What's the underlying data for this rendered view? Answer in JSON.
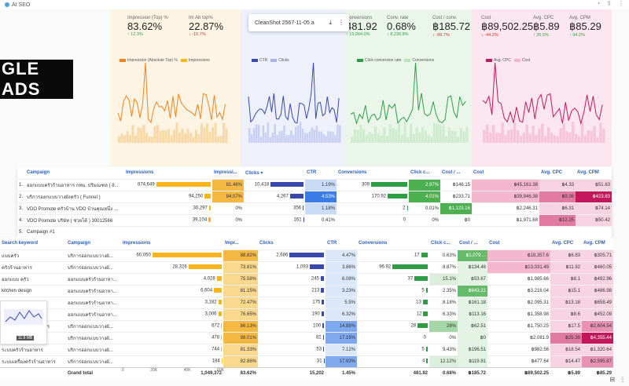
{
  "browser": {
    "tab_title": "AI SEO"
  },
  "banner": {
    "text": "GLE ADS"
  },
  "popup": {
    "title": "CleanShot 2567-11-05 a"
  },
  "kpis": {
    "p1": [
      {
        "label": "Impression (Top) %",
        "value": "83.62%",
        "delta": "↑ 12.3%",
        "dir": "up"
      },
      {
        "label": "Im Ab top%",
        "value": "22.87%",
        "delta": "↓ -15.7%",
        "dir": "down"
      }
    ],
    "p2": [
      {
        "label": "",
        "value": "15,202",
        "delta": "↓ -58.8%",
        "dir": "down"
      },
      {
        "label": "",
        "value": "1.45%",
        "delta": "↑ 43.3%",
        "dir": "up"
      }
    ],
    "p3": [
      {
        "label": "Conversions",
        "value": "481.92",
        "delta": "↑ 15,064.0%",
        "dir": "up"
      },
      {
        "label": "Conv. rate",
        "value": "0.68%",
        "delta": "↑ 8,236.8%",
        "dir": "up"
      },
      {
        "label": "Cost / conv.",
        "value": "฿185.72",
        "delta": "↓ -99.7%",
        "dir": "down"
      }
    ],
    "p4": [
      {
        "label": "Cost",
        "value": "฿89,502.25",
        "delta": "↓ -44.2%",
        "dir": "down"
      },
      {
        "label": "Avg. CPC",
        "value": "฿5.89",
        "delta": "↑ 35.5%",
        "dir": "up"
      },
      {
        "label": "Avg. CPM",
        "value": "฿85.29",
        "delta": "↑ 94.2%",
        "dir": "up"
      }
    ]
  },
  "legends": {
    "p1": [
      "Impression (Absolute Top) %",
      "Impressions"
    ],
    "p2": [
      "CTR",
      "Clicks"
    ],
    "p3": [
      "Click conversion rate",
      "Conversions"
    ],
    "p4": [
      "Avg. CPC",
      "Cost"
    ]
  },
  "colors": {
    "orange": "#f0821e",
    "blue": "#3949ab",
    "green": "#2e9e44",
    "magenta": "#c2185b",
    "amber": "#f9b51a"
  },
  "campaign_table": {
    "headers": [
      "Campaign",
      "Impressions",
      "Impressi...",
      "Clicks ▾",
      "CTR",
      "Conversions",
      "Click c...",
      "Cost / ...",
      "Cost",
      "Avg. CPC",
      "Avg. CPM"
    ],
    "rows": [
      {
        "n": "1.",
        "name": "ออกแบบครัวร้านอาหาร กทม. ปริมณฑล ( 8...",
        "impr": "874,649",
        "imprpct": 0.99,
        "imp_top": "81.46%",
        "clicks": "10,418",
        "clkpct": 0.95,
        "ctr": "1.19%",
        "conv": "309",
        "convpct": 0.92,
        "ccr": "2.97%",
        "cpc_conv": "฿146.15",
        "cost": "฿45,161.38",
        "avgcpc": "฿4.33",
        "avgcpm": "฿51.63"
      },
      {
        "n": "2.",
        "name": "บริการออกแบบวางผังครัว ( Funnel )",
        "impr": "94,250",
        "imprpct": 0.11,
        "imp_top": "84.07%",
        "clicks": "4,267",
        "clkpct": 0.39,
        "ctr": "4.53%",
        "conv": "170.92",
        "convpct": 0.5,
        "ccr": "4.01%",
        "cpc_conv": "฿233.71",
        "cost": "฿39,946.38",
        "avgcpc": "฿9.36",
        "avgcpm": "฿423.83"
      },
      {
        "n": "3.",
        "name": "VDO Promote ครัวบ้าน VDO บ้านคุณหนึ่ง ...",
        "impr": "30,297",
        "imprpct": 0.03,
        "imp_top": "0%",
        "clicks": "356",
        "clkpct": 0.02,
        "ctr": "1.18%",
        "conv": "2",
        "convpct": 0.01,
        "ccr": "0.01%",
        "cpc_conv": "฿1,123.16",
        "cost": "฿2,246.31",
        "avgcpc": "฿6.31",
        "avgcpm": "฿74.14"
      },
      {
        "n": "4.",
        "name": "VDO Promote บริษัท ( ช่วยได้ ) 30012566",
        "impr": "39,104",
        "imprpct": 0.04,
        "imp_top": "0%",
        "clicks": "161",
        "clkpct": 0.01,
        "ctr": "0.41%",
        "conv": "0",
        "convpct": 0,
        "ccr": "0%",
        "cpc_conv": "฿0",
        "cost": "฿1,971.68",
        "avgcpc": "฿12.25",
        "avgcpm": "฿50.42"
      },
      {
        "n": "5.",
        "name": "Campaign #1",
        "impr": "",
        "imprpct": 0,
        "imp_top": "",
        "clicks": "",
        "clkpct": 0,
        "ctr": "",
        "conv": "",
        "convpct": 0,
        "ccr": "",
        "cpc_conv": "",
        "cost": "",
        "avgcpc": "",
        "avgcpm": ""
      }
    ]
  },
  "keyword_table": {
    "headers": [
      "Search keyword",
      "Campaign",
      "Impressions",
      "Impr...",
      "Clicks",
      "CTR",
      "Conversions",
      "Click c...",
      "Cost / ...",
      "Cost",
      "Avg. CPC",
      "Avg. CPM"
    ],
    "rows": [
      {
        "kw": "แบบครัว",
        "camp": "บริการออกแบบวางผั...",
        "impr": "60,050",
        "ip": 0.98,
        "it": "88.82%",
        "clk": "2,686",
        "cp": 0.95,
        "ctr": "4.47%",
        "conv": "17",
        "vp": 0.15,
        "ccr": "0.63%",
        "cc": "฿1,079....",
        "cost": "฿18,357.6",
        "cpc": "฿6.83",
        "cpm": "฿305.71"
      },
      {
        "kw": "ครัวร้านอาหาร",
        "camp": "บริการออกแบบวางผั...",
        "impr": "28,326",
        "ip": 0.47,
        "it": "73.81%",
        "clk": "1,093",
        "cp": 0.39,
        "ctr": "3.86%",
        "conv": "96.92",
        "vp": 0.8,
        "ccr": "8.87%",
        "cc": "฿134.46",
        "cost": "฿13,031.49",
        "cpc": "฿11.92",
        "cpm": "฿460.05"
      },
      {
        "kw": "ออกแบบ ครัว",
        "camp": "ออกแบบครัวร้านอาหา...",
        "impr": "4,028",
        "ip": 0.07,
        "it": "75.58%",
        "clk": "245",
        "cp": 0.09,
        "ctr": "6.08%",
        "conv": "37",
        "vp": 0.3,
        "ccr": "15.1%",
        "cc": "฿53.67",
        "cost": "฿1,985.66",
        "cpc": "฿8.1",
        "cpm": "฿492.96"
      },
      {
        "kw": "kitchen design",
        "camp": "ออกแบบครัวร้านอาหา...",
        "impr": "6,604",
        "ip": 0.11,
        "it": "81.15%",
        "clk": "213",
        "cp": 0.08,
        "ctr": "3.23%",
        "conv": "5",
        "vp": 0.04,
        "ccr": "2.35%",
        "cc": "฿643.21",
        "cost": "฿3,216.04",
        "cpc": "฿15.1",
        "cpm": "฿486.98"
      },
      {
        "kw": "ครัว",
        "camp": "ออกแบบครัวร้านอาหา...",
        "impr": "3,182",
        "ip": 0.05,
        "it": "72.47%",
        "clk": "175",
        "cp": 0.06,
        "ctr": "5.5%",
        "conv": "13",
        "vp": 0.11,
        "ccr": "8.18%",
        "cc": "฿161.18",
        "cost": "฿2,095.31",
        "cpc": "฿13.18",
        "cpm": "฿658.49"
      },
      {
        "kw": "ครัวร้านอาหาร",
        "camp": "ออกแบบครัวร้านอาหา...",
        "impr": "3,006",
        "ip": 0.05,
        "it": "76.65%",
        "clk": "190",
        "cp": 0.07,
        "ctr": "6.32%",
        "conv": "12",
        "vp": 0.1,
        "ccr": "6.33%",
        "cc": "฿113.16",
        "cost": "฿1,358.98",
        "cpc": "฿8.6",
        "cpm": "฿452.09"
      },
      {
        "kw": "ออกแบบครัวร้านอาหาร",
        "camp": "บริการออกแบบวางผั...",
        "impr": "672",
        "ip": 0.01,
        "it": "86.13%",
        "clk": "100",
        "cp": 0.04,
        "ctr": "14.88%",
        "conv": "28",
        "vp": 0.23,
        "ccr": "28%",
        "cc": "฿62.51",
        "cost": "฿1,750.25",
        "cpc": "฿17.5",
        "cpm": "฿2,604.54"
      },
      {
        "kw": "",
        "camp": "บริการออกแบบวางผั...",
        "impr": "478",
        "ip": 0.01,
        "it": "98.01%",
        "clk": "82",
        "cp": 0.03,
        "ctr": "17.15%",
        "conv": "0",
        "vp": 0,
        "ccr": "0%",
        "cc": "฿0",
        "cost": "฿2,081.9",
        "cpc": "฿25.39",
        "cpm": "฿4,355.44"
      },
      {
        "kw": "ระบบครัวร้านอาหาร",
        "camp": "บริการออกแบบวางผั...",
        "impr": "744",
        "ip": 0.01,
        "it": "81.33%",
        "clk": "53",
        "cp": 0.02,
        "ctr": "7.12%",
        "conv": "5",
        "vp": 0.04,
        "ccr": "9.43%",
        "cc": "฿196.51",
        "cost": "฿982.56",
        "cpc": "฿18.54",
        "cpm": "฿1,320.64"
      },
      {
        "kw": "ระบบเครื่องครัวร้านอาหาร",
        "camp": "บริการออกแบบวางผั...",
        "impr": "184",
        "ip": 0.003,
        "it": "82.88%",
        "clk": "31",
        "cp": 0.01,
        "ctr": "17.93%",
        "conv": "4",
        "vp": 0.03,
        "ccr": "12.12%",
        "cc": "฿119.81",
        "cost": "฿477.64",
        "cpc": "฿14.47",
        "cpm": "฿2,595.87"
      }
    ],
    "total": {
      "label": "Grand total",
      "impr": "1,049,372",
      "it": "83.62%",
      "clk": "15,202",
      "ctr": "1.45%",
      "conv": "481.92",
      "ccr": "0.68%",
      "cc": "฿185.72",
      "cost": "฿89,502.25",
      "cpc": "฿5.89",
      "cpm": "฿85.29"
    }
  },
  "impr_axis": [
    "0",
    "20K",
    "40K",
    "60K"
  ],
  "thumb": {
    "size": "11.8 MB"
  }
}
